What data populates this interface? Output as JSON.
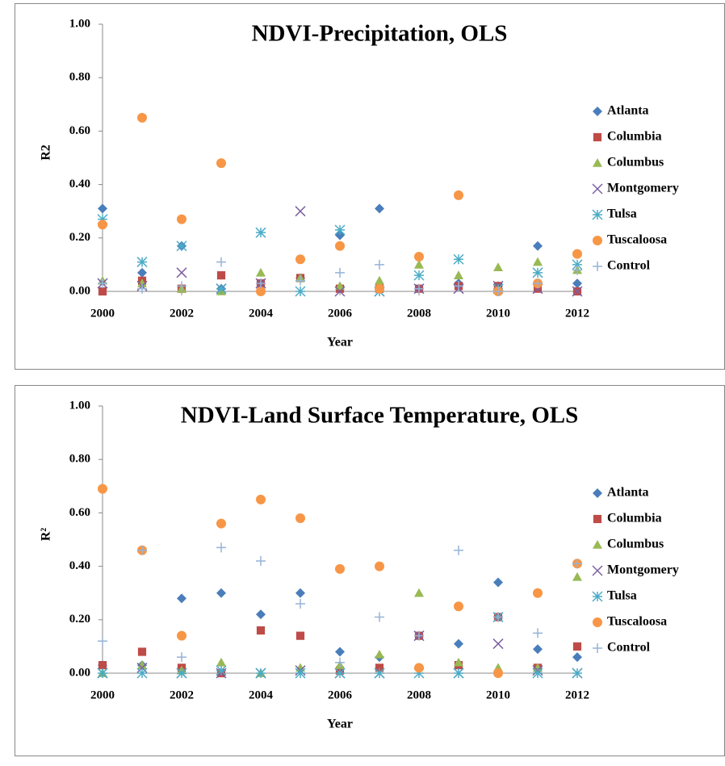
{
  "chart_data": [
    {
      "type": "scatter",
      "title": "NDVI-Precipitation, OLS",
      "x_label": "Year",
      "y_label": "R2",
      "x": [
        2000,
        2001,
        2002,
        2003,
        2004,
        2005,
        2006,
        2007,
        2008,
        2009,
        2010,
        2011,
        2012
      ],
      "xlim": [
        2000,
        2012
      ],
      "xticks": [
        2000,
        2002,
        2004,
        2006,
        2008,
        2010,
        2012
      ],
      "ylim": [
        0,
        1
      ],
      "yticks": [
        {
          "value": 0,
          "label": "0.00"
        },
        {
          "value": 0.2,
          "label": "0.20"
        },
        {
          "value": 0.4,
          "label": "0.40"
        },
        {
          "value": 0.6,
          "label": "0.60"
        },
        {
          "value": 0.8,
          "label": "0.80"
        },
        {
          "value": 1,
          "label": "1.00"
        }
      ],
      "legend": "right",
      "series": [
        {
          "name": "Atlanta",
          "color": "#4a7ebb",
          "marker": "diamond",
          "values": [
            0.31,
            0.07,
            0.17,
            0.01,
            0.03,
            0.05,
            0.21,
            0.31,
            0.01,
            0.03,
            0.02,
            0.17,
            0.03
          ]
        },
        {
          "name": "Columbia",
          "color": "#be4b48",
          "marker": "square",
          "values": [
            0.0,
            0.04,
            0.01,
            0.06,
            0.03,
            0.05,
            0.01,
            0.01,
            0.01,
            0.02,
            0.02,
            0.01,
            0.0
          ]
        },
        {
          "name": "Columbus",
          "color": "#98b954",
          "marker": "triangle",
          "values": [
            0.04,
            0.03,
            0.01,
            0.0,
            0.07,
            0.05,
            0.02,
            0.04,
            0.1,
            0.06,
            0.09,
            0.11,
            0.08
          ]
        },
        {
          "name": "Montgomery",
          "color": "#7d60a0",
          "marker": "x",
          "values": [
            0.03,
            0.02,
            0.07,
            0.01,
            0.03,
            0.3,
            0.0,
            0.0,
            0.01,
            0.01,
            0.02,
            0.01,
            0.0
          ]
        },
        {
          "name": "Tulsa",
          "color": "#4bacc6",
          "marker": "star",
          "values": [
            0.27,
            0.11,
            0.17,
            0.01,
            0.22,
            0.0,
            0.23,
            0.0,
            0.06,
            0.12,
            0.01,
            0.07,
            0.1
          ]
        },
        {
          "name": "Tuscaloosa",
          "color": "#f79646",
          "marker": "circle",
          "values": [
            0.25,
            0.65,
            0.27,
            0.48,
            0.0,
            0.12,
            0.17,
            0.01,
            0.13,
            0.36,
            0.0,
            0.03,
            0.14
          ]
        },
        {
          "name": "Control",
          "color": "#95b3d7",
          "marker": "plus",
          "values": [
            0.03,
            0.01,
            0.02,
            0.11,
            0.03,
            0.04,
            0.07,
            0.1,
            0.01,
            0.02,
            0.0,
            0.03,
            0.08
          ]
        }
      ]
    },
    {
      "type": "scatter",
      "title": "NDVI-Land Surface Temperature, OLS",
      "x_label": "Year",
      "y_label": "R²",
      "x": [
        2000,
        2001,
        2002,
        2003,
        2004,
        2005,
        2006,
        2007,
        2008,
        2009,
        2010,
        2011,
        2012
      ],
      "xlim": [
        2000,
        2012
      ],
      "xticks": [
        2000,
        2002,
        2004,
        2006,
        2008,
        2010,
        2012
      ],
      "ylim": [
        0,
        1
      ],
      "yticks": [
        {
          "value": 0,
          "label": "0.00"
        },
        {
          "value": 0.2,
          "label": "0.20"
        },
        {
          "value": 0.4,
          "label": "0.40"
        },
        {
          "value": 0.6,
          "label": "0.60"
        },
        {
          "value": 0.8,
          "label": "0.80"
        },
        {
          "value": 1,
          "label": "1.00"
        }
      ],
      "legend": "right",
      "series": [
        {
          "name": "Atlanta",
          "color": "#4a7ebb",
          "marker": "diamond",
          "values": [
            0.03,
            0.03,
            0.28,
            0.3,
            0.22,
            0.3,
            0.08,
            0.06,
            0.14,
            0.11,
            0.34,
            0.09,
            0.06
          ]
        },
        {
          "name": "Columbia",
          "color": "#be4b48",
          "marker": "square",
          "values": [
            0.03,
            0.08,
            0.02,
            0.0,
            0.16,
            0.14,
            0.01,
            0.02,
            0.14,
            0.03,
            0.21,
            0.02,
            0.1
          ]
        },
        {
          "name": "Columbus",
          "color": "#98b954",
          "marker": "triangle",
          "values": [
            0.0,
            0.03,
            0.01,
            0.04,
            0.0,
            0.02,
            0.03,
            0.07,
            0.3,
            0.04,
            0.02,
            0.02,
            0.36
          ]
        },
        {
          "name": "Montgomery",
          "color": "#7d60a0",
          "marker": "x",
          "values": [
            0.0,
            0.02,
            0.0,
            0.0,
            0.0,
            0.01,
            0.0,
            0.0,
            0.14,
            0.0,
            0.11,
            0.01,
            0.0
          ]
        },
        {
          "name": "Tulsa",
          "color": "#4bacc6",
          "marker": "star",
          "values": [
            0.0,
            0.0,
            0.0,
            0.01,
            0.0,
            0.0,
            0.0,
            0.0,
            0.0,
            0.0,
            0.21,
            0.0,
            0.0
          ]
        },
        {
          "name": "Tuscaloosa",
          "color": "#f79646",
          "marker": "circle",
          "values": [
            0.69,
            0.46,
            0.14,
            0.56,
            0.65,
            0.58,
            0.39,
            0.4,
            0.02,
            0.25,
            0.0,
            0.3,
            0.41
          ]
        },
        {
          "name": "Control",
          "color": "#95b3d7",
          "marker": "plus",
          "values": [
            0.12,
            0.46,
            0.06,
            0.47,
            0.42,
            0.26,
            0.04,
            0.21,
            0.14,
            0.46,
            0.21,
            0.15,
            0.41
          ]
        }
      ]
    }
  ]
}
